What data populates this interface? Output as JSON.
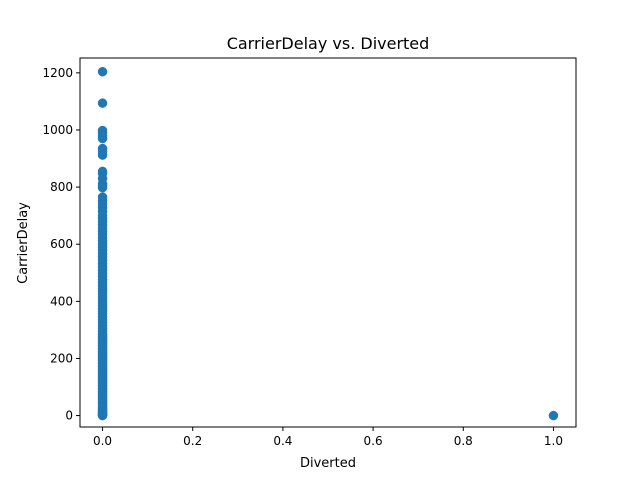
{
  "chart_data": {
    "type": "scatter",
    "title": "CarrierDelay vs. Diverted",
    "xlabel": "Diverted",
    "ylabel": "CarrierDelay",
    "xlim": [
      -0.05,
      1.05
    ],
    "ylim": [
      -40,
      1252
    ],
    "xticks": [
      0.0,
      0.2,
      0.4,
      0.6,
      0.8,
      1.0
    ],
    "xtick_labels": [
      "0.0",
      "0.2",
      "0.4",
      "0.6",
      "0.8",
      "1.0"
    ],
    "yticks": [
      0,
      200,
      400,
      600,
      800,
      1000,
      1200
    ],
    "ytick_labels": [
      "0",
      "200",
      "400",
      "600",
      "800",
      "1000",
      "1200"
    ],
    "grid": false,
    "legend": "none",
    "marker_color": "#1f77b4",
    "series": [
      {
        "x": [
          0,
          0,
          0,
          0,
          0,
          0,
          0,
          0,
          0,
          0,
          0,
          0,
          0,
          0,
          0,
          0,
          0,
          0,
          0,
          0,
          0,
          0,
          0,
          0,
          0,
          0,
          0,
          0,
          0,
          0,
          0,
          0,
          0,
          0,
          0,
          0,
          0,
          0,
          0,
          0,
          0,
          0,
          0,
          0,
          0,
          0,
          0,
          0,
          0,
          0,
          0,
          0,
          0,
          0,
          0,
          0,
          0,
          0,
          0,
          0,
          0,
          0,
          0,
          0,
          0,
          0,
          0,
          0,
          0,
          0,
          0,
          0,
          0,
          0,
          0,
          0,
          0,
          0,
          0,
          0,
          0,
          0,
          0,
          0,
          0,
          0,
          0,
          0,
          0,
          0,
          0,
          0,
          0,
          0,
          0,
          0,
          0,
          0,
          0,
          0,
          0,
          0,
          0,
          0,
          0,
          0,
          0,
          0,
          0,
          0,
          0,
          0,
          0,
          0,
          0,
          0,
          0,
          0,
          0,
          0,
          0,
          0,
          0,
          0,
          1
        ],
        "y": [
          1204,
          1094,
          998,
          990,
          980,
          970,
          935,
          925,
          912,
          855,
          848,
          830,
          812,
          805,
          798,
          765,
          752,
          740,
          728,
          715,
          700,
          690,
          680,
          668,
          655,
          645,
          635,
          622,
          612,
          600,
          590,
          580,
          567,
          555,
          545,
          532,
          520,
          510,
          498,
          488,
          476,
          466,
          455,
          444,
          435,
          426,
          415,
          405,
          395,
          385,
          375,
          366,
          356,
          345,
          335,
          325,
          315,
          305,
          296,
          286,
          276,
          266,
          256,
          246,
          236,
          226,
          216,
          206,
          196,
          186,
          176,
          166,
          156,
          146,
          136,
          126,
          116,
          106,
          96,
          86,
          76,
          66,
          56,
          46,
          36,
          26,
          20,
          14,
          8,
          4,
          2,
          1,
          0,
          3,
          6,
          10,
          18,
          24,
          30,
          42,
          52,
          62,
          72,
          82,
          92,
          102,
          112,
          122,
          132,
          142,
          152,
          162,
          172,
          182,
          192,
          202,
          212,
          222,
          232,
          242,
          252,
          262,
          272,
          282,
          0
        ]
      }
    ]
  }
}
